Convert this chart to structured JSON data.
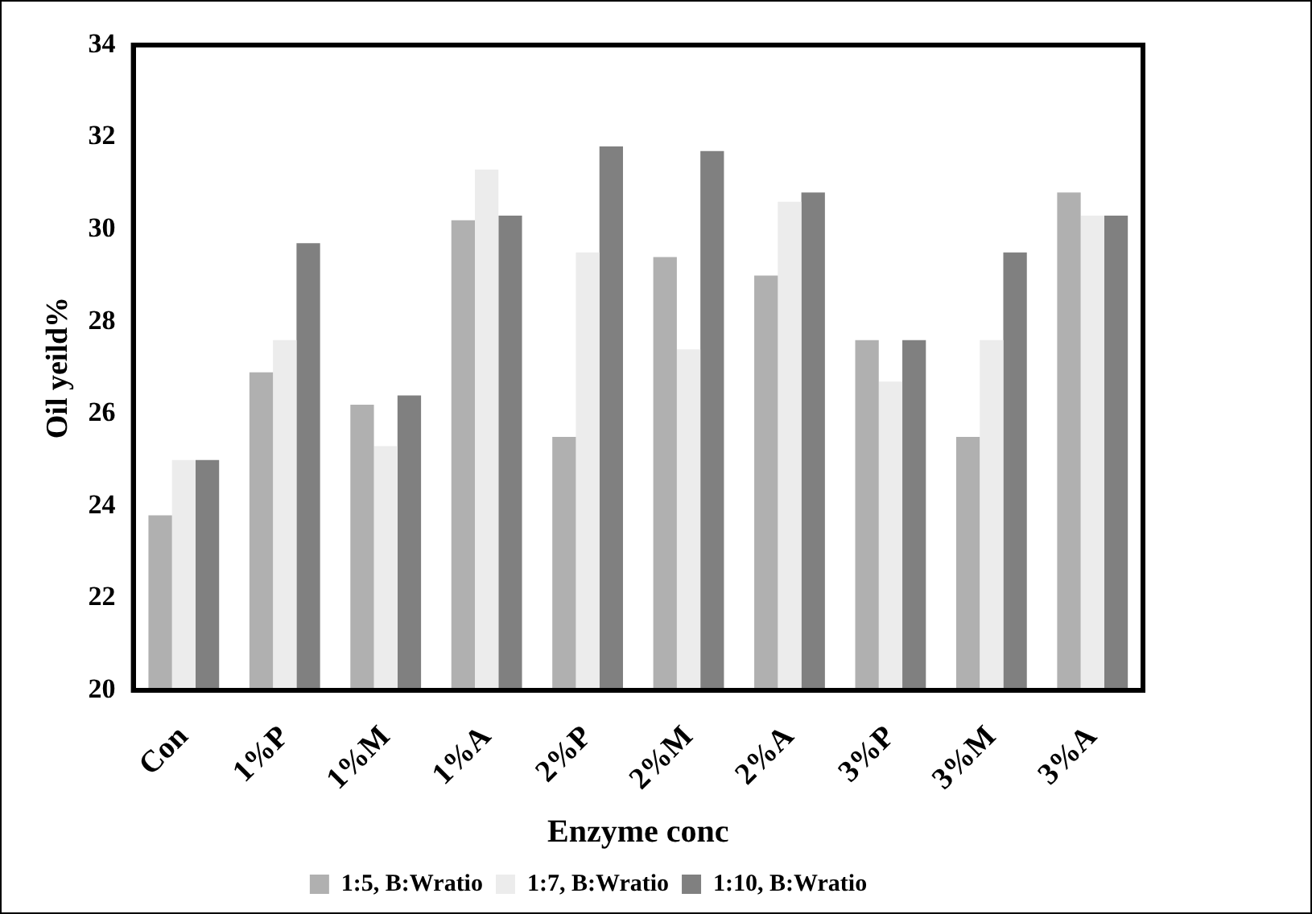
{
  "chart_data": {
    "type": "bar",
    "xlabel": "Enzyme conc",
    "ylabel": "Oil yeild%",
    "categories": [
      "Con",
      "1%P",
      "1%M",
      "1%A",
      "2%P",
      "2%M",
      "2%A",
      "3%P",
      "3%M",
      "3%A"
    ],
    "series": [
      {
        "name": "1:5, B:Wratio",
        "color": "#b0b0b0",
        "values": [
          23.8,
          26.9,
          26.2,
          30.2,
          25.5,
          29.4,
          29.0,
          27.6,
          25.5,
          30.8
        ]
      },
      {
        "name": "1:7, B:Wratio",
        "color": "#ececec",
        "values": [
          25.0,
          27.6,
          25.3,
          31.3,
          29.5,
          27.4,
          30.6,
          26.7,
          27.6,
          30.3
        ]
      },
      {
        "name": "1:10, B:Wratio",
        "color": "#808080",
        "values": [
          25.0,
          29.7,
          26.4,
          30.3,
          31.8,
          31.7,
          30.8,
          27.6,
          29.5,
          30.3
        ]
      }
    ],
    "ylim": [
      20,
      34
    ],
    "yticks": [
      20,
      22,
      24,
      26,
      28,
      30,
      32,
      34
    ],
    "grid": false,
    "legend": "bottom"
  }
}
